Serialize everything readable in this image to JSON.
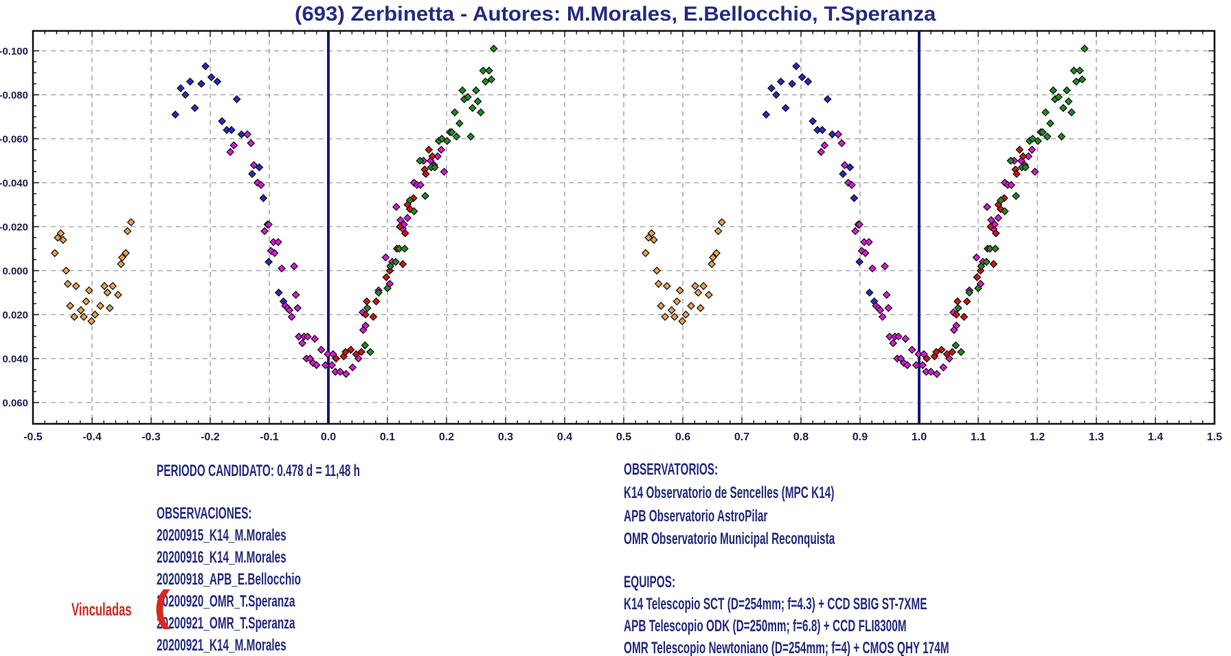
{
  "title": "(693) Zerbinetta - Autores: M.Morales, E.Bellocchio, T.Speranza",
  "left_panel": {
    "period": "PERIODO CANDIDATO: 0.478 d = 11,48 h",
    "observations_header": "OBSERVACIONES:",
    "sessions": [
      "20200915_K14_M.Morales",
      "20200916_K14_M.Morales",
      "20200918_APB_E.Bellocchio",
      "20200920_OMR_T.Speranza",
      "20200921_OMR_T.Speranza",
      "20200921_K14_M.Morales"
    ],
    "linked_label": "Vinculadas",
    "linked_brace": "("
  },
  "right_panel": {
    "observatories_header": "OBSERVATORIOS:",
    "observatories": [
      "K14 Observatorio de Sencelles (MPC K14)",
      "APB Observatorio AstroPilar",
      "OMR Observatorio Municipal Reconquista"
    ],
    "equipment_header": "EQUIPOS:",
    "equipment": [
      "K14 Telescopio SCT (D=254mm; f=4.3) + CCD SBIG ST-7XME",
      "APB Telescopio ODK (D=250mm; f=6.8) + CCD FLI8300M",
      "OMR Telescopio Newtoniano (D=254mm; f=4) + CMOS QHY 174M"
    ]
  },
  "chart_data": {
    "type": "scatter",
    "title": "(693) Zerbinetta - Autores: M.Morales, E.Bellocchio, T.Speranza",
    "xlabel": "",
    "ylabel": "",
    "x_range": [
      -0.5,
      1.5
    ],
    "y_range_mag": [
      -0.11,
      0.07
    ],
    "y_axis_inverted_magnitude": true,
    "grid": "dashed",
    "x_tick_labels": [
      "-0.5",
      "-0.4",
      "-0.3",
      "-0.2",
      "-0.1",
      "0.0",
      "0.1",
      "0.2",
      "0.3",
      "0.4",
      "0.5",
      "0.6",
      "0.7",
      "0.8",
      "0.9",
      "1.0",
      "1.1",
      "1.2",
      "1.3",
      "1.4",
      "1.5"
    ],
    "y_tick_labels": [
      "-0.100",
      "-0.080",
      "-0.060",
      "-0.040",
      "-0.020",
      "0.000",
      "0.020",
      "0.040",
      "0.060"
    ],
    "x_minor_step": 0.02,
    "y_minor_step": 0.005,
    "vertical_lines": [
      0.0,
      1.0
    ],
    "phase_duplicate_offset": 1.0,
    "marker": "diamond",
    "series": [
      {
        "name": "session-orange",
        "color": "#e9a050",
        "points": [
          [
            -0.463,
            -0.008
          ],
          [
            -0.458,
            -0.015
          ],
          [
            -0.453,
            -0.017
          ],
          [
            -0.449,
            -0.014
          ],
          [
            -0.444,
            0.0
          ],
          [
            -0.441,
            0.006
          ],
          [
            -0.437,
            0.016
          ],
          [
            -0.43,
            0.021
          ],
          [
            -0.427,
            0.007
          ],
          [
            -0.419,
            0.018
          ],
          [
            -0.414,
            0.021
          ],
          [
            -0.41,
            0.014
          ],
          [
            -0.405,
            0.009
          ],
          [
            -0.401,
            0.023
          ],
          [
            -0.395,
            0.02
          ],
          [
            -0.386,
            0.016
          ],
          [
            -0.379,
            0.007
          ],
          [
            -0.374,
            0.01
          ],
          [
            -0.37,
            0.017
          ],
          [
            -0.365,
            0.007
          ],
          [
            -0.356,
            0.011
          ],
          [
            -0.351,
            -0.003
          ],
          [
            -0.349,
            -0.006
          ],
          [
            -0.343,
            -0.008
          ],
          [
            -0.34,
            -0.018
          ],
          [
            -0.334,
            -0.022
          ]
        ]
      },
      {
        "name": "session-blue",
        "color": "#2328c6",
        "points": [
          [
            -0.259,
            -0.071
          ],
          [
            -0.25,
            -0.083
          ],
          [
            -0.242,
            -0.08
          ],
          [
            -0.234,
            -0.086
          ],
          [
            -0.226,
            -0.074
          ],
          [
            -0.215,
            -0.085
          ],
          [
            -0.208,
            -0.093
          ],
          [
            -0.198,
            -0.088
          ],
          [
            -0.188,
            -0.086
          ],
          [
            -0.18,
            -0.068
          ],
          [
            -0.172,
            -0.064
          ],
          [
            -0.164,
            -0.064
          ],
          [
            -0.155,
            -0.078
          ],
          [
            -0.147,
            -0.062
          ],
          [
            -0.129,
            -0.044
          ],
          [
            -0.117,
            -0.047
          ],
          [
            -0.11,
            -0.033
          ],
          [
            -0.101,
            -0.004
          ],
          [
            -0.084,
            0.01
          ],
          [
            -0.076,
            0.014
          ]
        ]
      },
      {
        "name": "session-magenta",
        "color": "#dd14dd",
        "points": [
          [
            -0.166,
            -0.054
          ],
          [
            -0.16,
            -0.057
          ],
          [
            -0.137,
            -0.062
          ],
          [
            -0.131,
            -0.058
          ],
          [
            -0.126,
            -0.048
          ],
          [
            -0.12,
            -0.04
          ],
          [
            -0.114,
            -0.039
          ],
          [
            -0.108,
            -0.018
          ],
          [
            -0.103,
            -0.021
          ],
          [
            -0.101,
            -0.021
          ],
          [
            -0.097,
            -0.009
          ],
          [
            -0.093,
            -0.013
          ],
          [
            -0.091,
            -0.008
          ],
          [
            -0.085,
            -0.013
          ],
          [
            -0.079,
            -0.001
          ],
          [
            -0.073,
            0.016
          ],
          [
            -0.069,
            0.017
          ],
          [
            -0.066,
            0.018
          ],
          [
            -0.062,
            0.021
          ],
          [
            -0.058,
            -0.002
          ],
          [
            -0.055,
            0.011
          ],
          [
            -0.052,
            0.017
          ],
          [
            -0.05,
            0.03
          ],
          [
            -0.044,
            0.033
          ],
          [
            -0.041,
            0.03
          ],
          [
            -0.037,
            0.04
          ],
          [
            -0.035,
            0.03
          ],
          [
            -0.031,
            0.04
          ],
          [
            -0.026,
            0.042
          ],
          [
            -0.023,
            0.031
          ],
          [
            -0.02,
            0.043
          ],
          [
            -0.012,
            0.036
          ],
          [
            -0.005,
            0.043
          ],
          [
            -0.001,
            0.038
          ],
          [
            0.006,
            0.043
          ],
          [
            0.008,
            0.038
          ],
          [
            0.012,
            0.046
          ],
          [
            0.02,
            0.046
          ],
          [
            0.03,
            0.047
          ],
          [
            0.041,
            0.044
          ],
          [
            0.051,
            0.04
          ],
          [
            0.058,
            0.019
          ],
          [
            0.059,
            0.027
          ],
          [
            0.063,
            0.025
          ],
          [
            0.085,
            0.009
          ],
          [
            0.097,
            -0.006
          ],
          [
            0.104,
            0.006
          ],
          [
            0.108,
            -0.004
          ],
          [
            0.115,
            -0.029
          ],
          [
            0.122,
            -0.023
          ],
          [
            0.126,
            -0.019
          ],
          [
            0.128,
            -0.021
          ],
          [
            0.134,
            -0.024
          ],
          [
            0.145,
            -0.04
          ],
          [
            0.15,
            -0.039
          ],
          [
            0.156,
            -0.039
          ],
          [
            0.161,
            -0.05
          ],
          [
            0.173,
            -0.05
          ],
          [
            0.179,
            -0.048
          ],
          [
            0.185,
            -0.052
          ],
          [
            0.191,
            -0.055
          ],
          [
            0.196,
            -0.045
          ]
        ]
      },
      {
        "name": "session-red",
        "color": "#d31212",
        "points": [
          [
            0.013,
            0.04
          ],
          [
            0.026,
            0.039
          ],
          [
            0.029,
            0.037
          ],
          [
            0.038,
            0.036
          ],
          [
            0.047,
            0.038
          ],
          [
            0.056,
            0.037
          ],
          [
            0.063,
            0.02
          ],
          [
            0.065,
            0.014
          ],
          [
            0.076,
            0.021
          ],
          [
            0.081,
            0.014
          ],
          [
            0.098,
            0.003
          ],
          [
            0.104,
            0.0
          ],
          [
            0.116,
            -0.01
          ],
          [
            0.121,
            -0.02
          ],
          [
            0.126,
            -0.003
          ],
          [
            0.13,
            -0.017
          ],
          [
            0.134,
            -0.03
          ],
          [
            0.138,
            -0.028
          ],
          [
            0.144,
            -0.033
          ],
          [
            0.163,
            -0.046
          ],
          [
            0.165,
            -0.044
          ],
          [
            0.17,
            -0.055
          ],
          [
            0.176,
            -0.052
          ]
        ]
      },
      {
        "name": "session-green",
        "color": "#1e8b22",
        "points": [
          [
            0.062,
            0.034
          ],
          [
            0.066,
            0.017
          ],
          [
            0.071,
            0.037
          ],
          [
            0.085,
            0.01
          ],
          [
            0.1,
            0.008
          ],
          [
            0.105,
            -0.002
          ],
          [
            0.114,
            -0.004
          ],
          [
            0.12,
            -0.01
          ],
          [
            0.129,
            -0.01
          ],
          [
            0.138,
            -0.032
          ],
          [
            0.145,
            -0.027
          ],
          [
            0.155,
            -0.05
          ],
          [
            0.164,
            -0.034
          ],
          [
            0.174,
            -0.047
          ],
          [
            0.18,
            -0.047
          ],
          [
            0.187,
            -0.059
          ],
          [
            0.192,
            -0.06
          ],
          [
            0.201,
            -0.059
          ],
          [
            0.206,
            -0.063
          ],
          [
            0.209,
            -0.063
          ],
          [
            0.214,
            -0.072
          ],
          [
            0.217,
            -0.061
          ],
          [
            0.222,
            -0.067
          ],
          [
            0.227,
            -0.082
          ],
          [
            0.23,
            -0.078
          ],
          [
            0.236,
            -0.079
          ],
          [
            0.241,
            -0.061
          ],
          [
            0.244,
            -0.074
          ],
          [
            0.25,
            -0.082
          ],
          [
            0.253,
            -0.077
          ],
          [
            0.258,
            -0.072
          ],
          [
            0.262,
            -0.091
          ],
          [
            0.266,
            -0.086
          ],
          [
            0.272,
            -0.091
          ],
          [
            0.276,
            -0.087
          ],
          [
            0.28,
            -0.101
          ]
        ]
      }
    ],
    "colors": {
      "accent_navy": "#252c7d",
      "grid_gray": "#9a9a9a",
      "axis_black": "#151515",
      "zero_line_navy": "#181a7e",
      "linked_red": "#d42a21"
    }
  }
}
